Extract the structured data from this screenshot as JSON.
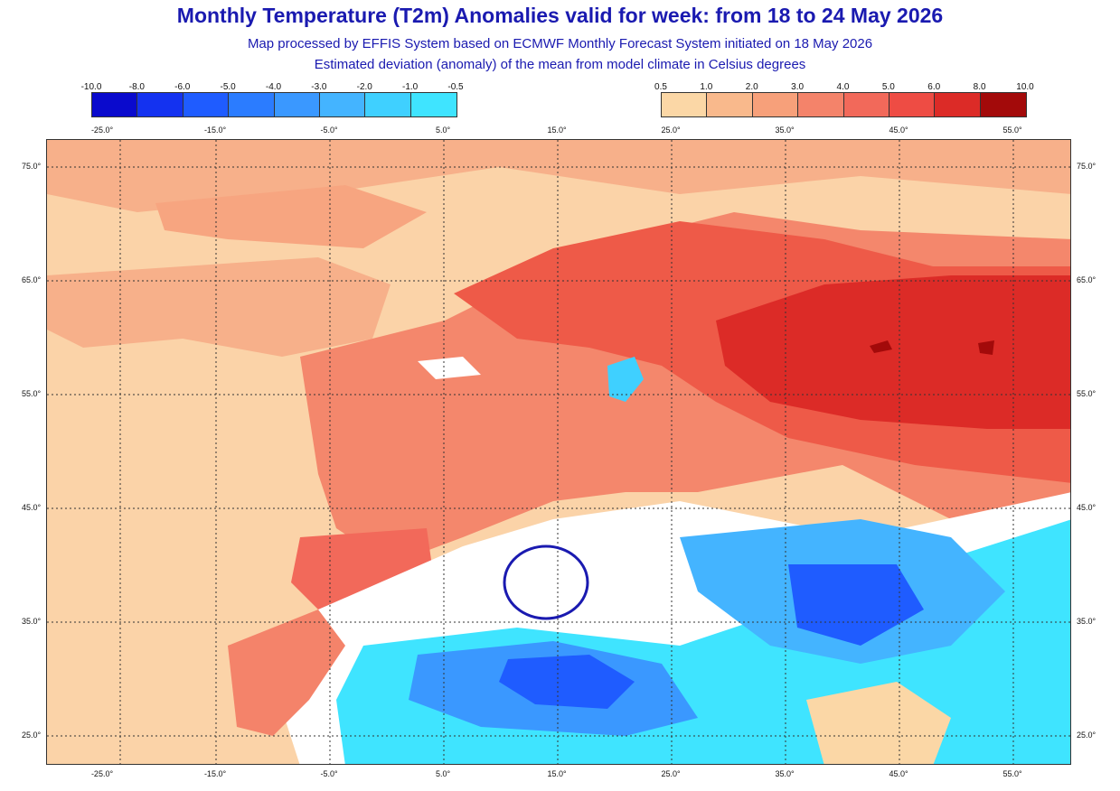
{
  "title": "Monthly Temperature (T2m) Anomalies valid for week: from 18 to 24 May 2026",
  "subtitle_1": "Map processed by EFFIS System based on ECMWF Monthly Forecast System initiated on 18 May 2026",
  "subtitle_2": "Estimated deviation (anomaly) of the mean from model climate in Celsius degrees",
  "legend_negative": {
    "labels": [
      "-10.0",
      "-8.0",
      "-6.0",
      "-5.0",
      "-4.0",
      "-3.0",
      "-2.0",
      "-1.0",
      "-0.5"
    ],
    "colors": [
      "#0a0acd",
      "#1432f0",
      "#1f5cff",
      "#2b7cff",
      "#3a98ff",
      "#44b4ff",
      "#3fd0ff",
      "#3fe4ff"
    ]
  },
  "legend_positive": {
    "labels": [
      "0.5",
      "1.0",
      "2.0",
      "3.0",
      "4.0",
      "5.0",
      "6.0",
      "8.0",
      "10.0"
    ],
    "colors": [
      "#fbd7a6",
      "#f9b98c",
      "#f7a07a",
      "#f4836a",
      "#f2695a",
      "#ee4c44",
      "#dc2b27",
      "#a30a0a"
    ]
  },
  "longitude_labels": [
    "-25.0°",
    "-15.0°",
    "-5.0°",
    "5.0°",
    "15.0°",
    "25.0°",
    "35.0°",
    "45.0°",
    "55.0°"
  ],
  "latitude_labels": [
    "75.0°",
    "65.0°",
    "55.0°",
    "45.0°",
    "35.0°",
    "25.0°"
  ],
  "map": {
    "background_color": "#fbd3a8",
    "highlight_ring_color": "#1a1ab0"
  }
}
